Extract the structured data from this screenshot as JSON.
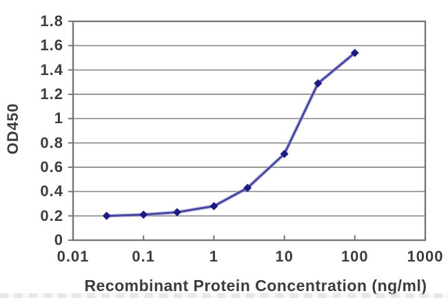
{
  "chart_data": {
    "type": "line",
    "title": "",
    "xlabel": "Recombinant Protein Concentration (ng/ml)",
    "ylabel": "OD450",
    "x_scale": "log",
    "xlim": [
      0.01,
      1000
    ],
    "ylim": [
      0,
      1.8
    ],
    "x_ticks": [
      0.01,
      0.1,
      1,
      10,
      100,
      1000
    ],
    "x_tick_labels": [
      "0.01",
      "0.1",
      "1",
      "10",
      "100",
      "1000"
    ],
    "y_ticks": [
      0,
      0.2,
      0.4,
      0.6,
      0.8,
      1,
      1.2,
      1.4,
      1.6,
      1.8
    ],
    "y_tick_labels": [
      "0",
      "0.2",
      "0.4",
      "0.6",
      "0.8",
      "1",
      "1.2",
      "1.4",
      "1.6",
      "1.8"
    ],
    "grid": "horizontal",
    "legend": "none",
    "series": [
      {
        "name": "OD450",
        "marker": "diamond",
        "x": [
          0.03,
          0.1,
          0.3,
          1,
          3,
          10,
          30,
          100
        ],
        "y": [
          0.2,
          0.21,
          0.23,
          0.28,
          0.43,
          0.71,
          1.29,
          1.54
        ]
      }
    ]
  },
  "colors": {
    "line": "#4747a2",
    "line_halo": "#a3a3d9",
    "marker": "#1b1b85",
    "grid": "#8a8a8a",
    "frame": "#757575",
    "text": "#3c3c3c",
    "background": "#ffffff"
  }
}
